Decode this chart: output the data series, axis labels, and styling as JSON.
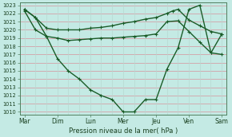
{
  "background_color": "#c4eae4",
  "grid_color_h": "#d4a0a8",
  "grid_color_v": "#b8d8d0",
  "line_color": "#1a5c28",
  "xlabel": "Pression niveau de la mer( hPa )",
  "xtick_labels": [
    "Mar",
    "Dim",
    "Lun",
    "Mer",
    "Jeu",
    "Ven",
    "Sam"
  ],
  "ylim": [
    1010,
    1023
  ],
  "yticks": [
    1010,
    1011,
    1012,
    1013,
    1014,
    1015,
    1016,
    1017,
    1018,
    1019,
    1020,
    1021,
    1022,
    1023
  ],
  "xtick_positions": [
    0,
    1,
    2,
    3,
    4,
    5,
    6
  ],
  "line1_x": [
    0,
    0.33,
    0.67,
    1.0,
    1.33,
    1.67,
    2.0,
    2.33,
    2.67,
    3.0,
    3.33,
    3.67,
    4.0,
    4.33,
    4.5,
    4.67,
    5.0,
    5.33,
    5.67,
    6.0
  ],
  "line1_y": [
    1022.5,
    1021.5,
    1020.2,
    1020.0,
    1020.0,
    1020.0,
    1020.2,
    1020.3,
    1020.5,
    1020.8,
    1021.0,
    1021.3,
    1021.5,
    1022.0,
    1022.3,
    1022.5,
    1021.2,
    1020.5,
    1019.8,
    1019.5
  ],
  "line2_x": [
    0,
    0.33,
    0.67,
    1.0,
    1.33,
    1.67,
    2.0,
    2.33,
    2.67,
    3.0,
    3.33,
    3.67,
    4.0,
    4.33,
    4.67,
    5.0,
    5.33,
    5.67,
    6.0
  ],
  "line2_y": [
    1022.3,
    1020.0,
    1019.2,
    1019.0,
    1018.7,
    1018.8,
    1018.9,
    1019.0,
    1019.0,
    1019.1,
    1019.2,
    1019.3,
    1019.5,
    1021.0,
    1021.1,
    1019.8,
    1018.5,
    1017.2,
    1019.5
  ],
  "line3_x": [
    0,
    0.33,
    0.67,
    1.0,
    1.33,
    1.67,
    2.0,
    2.33,
    2.67,
    3.0,
    3.33,
    3.67,
    4.0,
    4.33,
    4.67,
    5.0,
    5.33,
    5.67,
    6.0
  ],
  "line3_y": [
    1022.5,
    1021.5,
    1019.2,
    1016.5,
    1015.0,
    1014.0,
    1012.7,
    1012.0,
    1011.5,
    1010.0,
    1010.0,
    1011.5,
    1011.5,
    1015.2,
    1017.8,
    1022.5,
    1023.0,
    1017.2,
    1017.0
  ]
}
